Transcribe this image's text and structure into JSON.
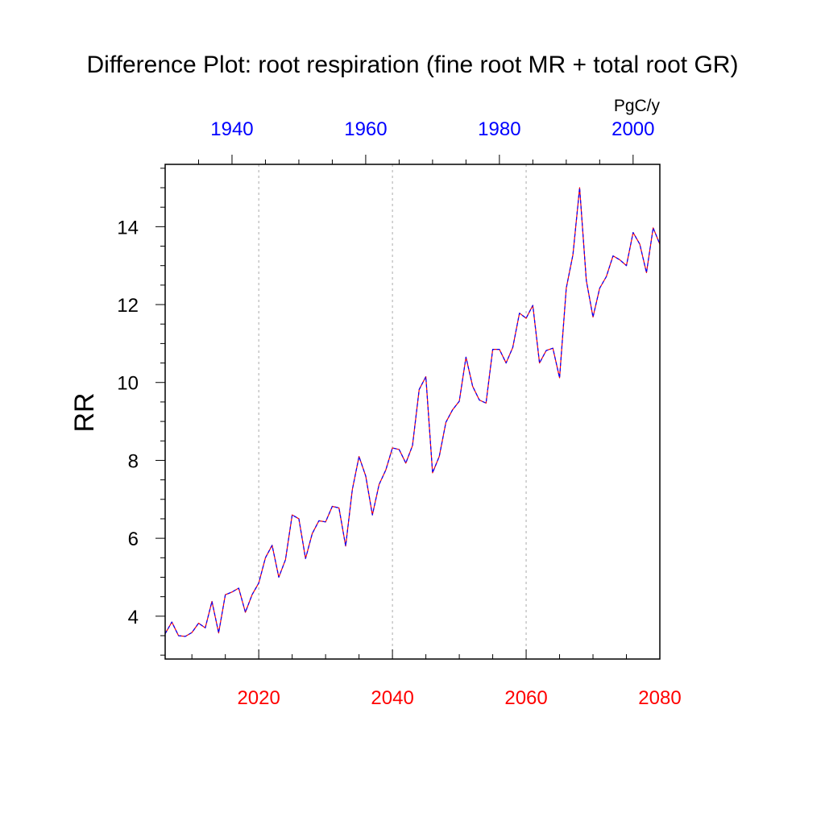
{
  "chart_data": {
    "type": "line",
    "title": "Difference Plot: root respiration (fine root MR + total root GR)",
    "ylabel": "RR",
    "units": "PgC/y",
    "grid": "vertical dotted lines at bottom-axis major ticks",
    "x_bottom": {
      "range": [
        2006,
        2080
      ],
      "ticks": [
        2020,
        2040,
        2060,
        2080
      ],
      "tick_color": "#ff0000"
    },
    "x_top": {
      "range": [
        1930,
        2004
      ],
      "ticks": [
        1940,
        1960,
        1980,
        2000
      ],
      "tick_color": "#0000ff"
    },
    "ylim": [
      2.9,
      15.6
    ],
    "yticks": [
      4,
      6,
      8,
      10,
      12,
      14
    ],
    "x": [
      2006,
      2007,
      2008,
      2009,
      2010,
      2011,
      2012,
      2013,
      2014,
      2015,
      2016,
      2017,
      2018,
      2019,
      2020,
      2021,
      2022,
      2023,
      2024,
      2025,
      2026,
      2027,
      2028,
      2029,
      2030,
      2031,
      2032,
      2033,
      2034,
      2035,
      2036,
      2037,
      2038,
      2039,
      2040,
      2041,
      2042,
      2043,
      2044,
      2045,
      2046,
      2047,
      2048,
      2049,
      2050,
      2051,
      2052,
      2053,
      2054,
      2055,
      2056,
      2057,
      2058,
      2059,
      2060,
      2061,
      2062,
      2063,
      2064,
      2065,
      2066,
      2067,
      2068,
      2069,
      2070,
      2071,
      2072,
      2073,
      2074,
      2075,
      2076,
      2077,
      2078,
      2079,
      2080
    ],
    "series": [
      {
        "color": "#ff0000",
        "style": "solid",
        "values": [
          3.55,
          3.85,
          3.5,
          3.48,
          3.58,
          3.82,
          3.7,
          4.38,
          3.57,
          4.55,
          4.62,
          4.72,
          4.1,
          4.55,
          4.85,
          5.5,
          5.82,
          5.0,
          5.45,
          6.6,
          6.5,
          5.48,
          6.12,
          6.45,
          6.42,
          6.82,
          6.78,
          5.8,
          7.25,
          8.1,
          7.6,
          6.6,
          7.38,
          7.75,
          8.32,
          8.28,
          7.93,
          8.38,
          9.82,
          10.15,
          7.68,
          8.1,
          8.98,
          9.3,
          9.52,
          10.65,
          9.9,
          9.55,
          9.47,
          10.85,
          10.85,
          10.5,
          10.9,
          11.78,
          11.65,
          11.98,
          10.5,
          10.82,
          10.88,
          10.12,
          12.42,
          13.28,
          15.0,
          12.62,
          11.68,
          12.42,
          12.72,
          13.25,
          13.15,
          13.0,
          13.85,
          13.55,
          12.82,
          13.97,
          13.55
        ]
      },
      {
        "color": "#0000ff",
        "style": "dashed",
        "values": [
          3.55,
          3.85,
          3.5,
          3.48,
          3.58,
          3.82,
          3.7,
          4.38,
          3.57,
          4.55,
          4.62,
          4.72,
          4.1,
          4.55,
          4.85,
          5.5,
          5.82,
          5.0,
          5.45,
          6.6,
          6.5,
          5.48,
          6.12,
          6.45,
          6.42,
          6.82,
          6.78,
          5.8,
          7.25,
          8.1,
          7.6,
          6.6,
          7.38,
          7.75,
          8.32,
          8.28,
          7.93,
          8.38,
          9.82,
          10.15,
          7.68,
          8.1,
          8.98,
          9.3,
          9.52,
          10.65,
          9.9,
          9.55,
          9.47,
          10.85,
          10.85,
          10.5,
          10.9,
          11.78,
          11.65,
          11.98,
          10.5,
          10.82,
          10.88,
          10.12,
          12.42,
          13.28,
          15.0,
          12.62,
          11.68,
          12.42,
          12.72,
          13.25,
          13.15,
          13.0,
          13.85,
          13.55,
          12.82,
          13.97,
          13.55
        ]
      }
    ]
  }
}
